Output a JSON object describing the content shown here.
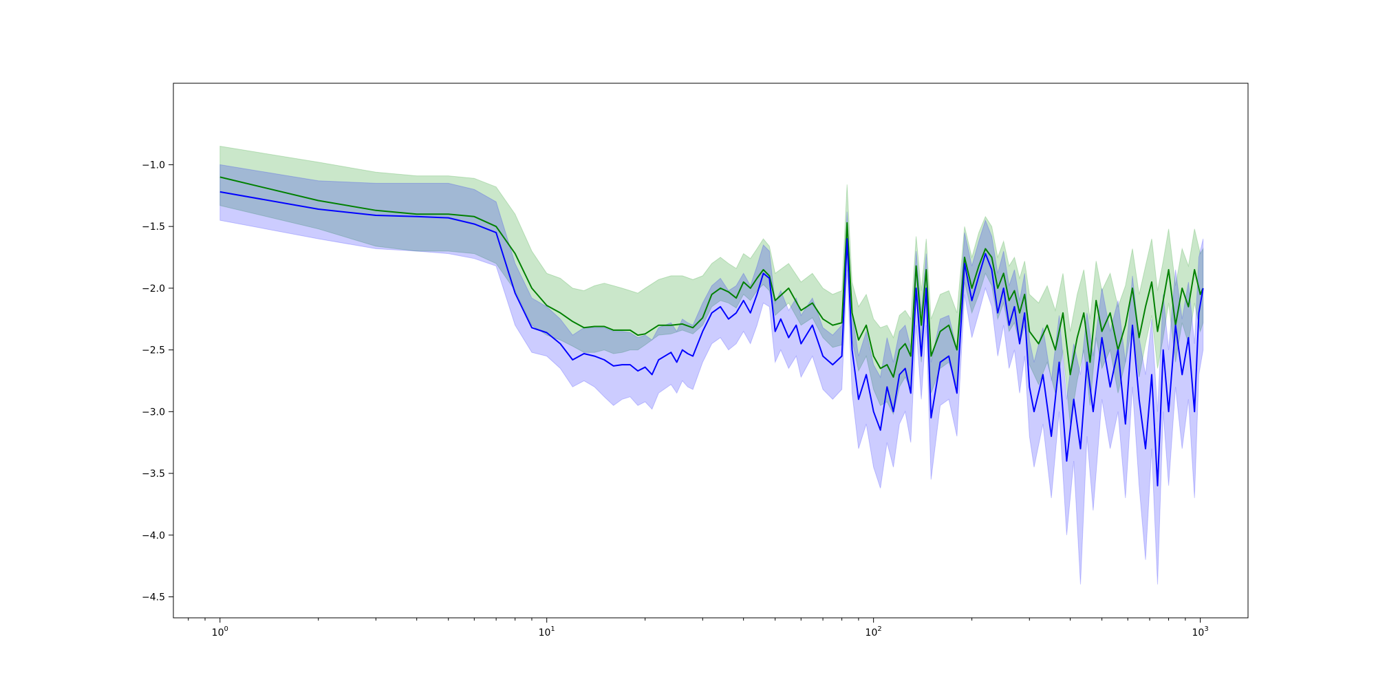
{
  "chart_data": {
    "type": "line",
    "title": "",
    "xlabel": "",
    "ylabel": "",
    "xscale": "log",
    "xlim": [
      0.72,
      1400
    ],
    "ylim": [
      -4.67,
      -0.34
    ],
    "grid": false,
    "legend": "none",
    "x_tick_labels": [
      {
        "base": "10",
        "exp": "0",
        "value": 1
      },
      {
        "base": "10",
        "exp": "1",
        "value": 10
      },
      {
        "base": "10",
        "exp": "2",
        "value": 100
      },
      {
        "base": "10",
        "exp": "3",
        "value": 1000
      }
    ],
    "y_ticks": [
      -1.0,
      -1.5,
      -2.0,
      -2.5,
      -3.0,
      -3.5,
      -4.0,
      -4.5
    ],
    "y_tick_labels": [
      "−1.0",
      "−1.5",
      "−2.0",
      "−2.5",
      "−3.0",
      "−3.5",
      "−4.0",
      "−4.5"
    ],
    "series": [
      {
        "color": "#008000",
        "band_color": "#2ca02c",
        "band_opacity": 0.25,
        "x": [
          1,
          2,
          3,
          4,
          5,
          6,
          7,
          8,
          9,
          10,
          11,
          12,
          13,
          14,
          15,
          16,
          17,
          18,
          19,
          20,
          22,
          24,
          26,
          28,
          30,
          32,
          34,
          36,
          38,
          40,
          42,
          44,
          46,
          48,
          50,
          55,
          60,
          65,
          70,
          75,
          80,
          83,
          86,
          90,
          95,
          100,
          105,
          110,
          115,
          120,
          125,
          130,
          135,
          140,
          145,
          150,
          160,
          170,
          180,
          190,
          200,
          210,
          220,
          230,
          240,
          250,
          260,
          270,
          280,
          290,
          300,
          320,
          340,
          360,
          380,
          400,
          420,
          440,
          460,
          480,
          500,
          530,
          560,
          590,
          620,
          650,
          680,
          710,
          740,
          770,
          800,
          840,
          880,
          920,
          960,
          1000,
          1020
        ],
        "y": [
          -1.1,
          -1.29,
          -1.37,
          -1.4,
          -1.4,
          -1.42,
          -1.5,
          -1.72,
          -2.0,
          -2.14,
          -2.2,
          -2.27,
          -2.32,
          -2.31,
          -2.31,
          -2.34,
          -2.34,
          -2.34,
          -2.38,
          -2.37,
          -2.3,
          -2.3,
          -2.29,
          -2.32,
          -2.24,
          -2.05,
          -2.0,
          -2.03,
          -2.08,
          -1.95,
          -2.0,
          -1.92,
          -1.85,
          -1.9,
          -2.1,
          -2.0,
          -2.18,
          -2.12,
          -2.25,
          -2.3,
          -2.28,
          -1.47,
          -2.2,
          -2.42,
          -2.3,
          -2.55,
          -2.65,
          -2.62,
          -2.72,
          -2.5,
          -2.45,
          -2.55,
          -1.82,
          -2.3,
          -1.85,
          -2.55,
          -2.35,
          -2.3,
          -2.5,
          -1.75,
          -2.0,
          -1.82,
          -1.68,
          -1.75,
          -2.0,
          -1.88,
          -2.1,
          -2.02,
          -2.2,
          -2.05,
          -2.35,
          -2.45,
          -2.3,
          -2.5,
          -2.2,
          -2.7,
          -2.4,
          -2.2,
          -2.6,
          -2.1,
          -2.35,
          -2.2,
          -2.5,
          -2.3,
          -2.0,
          -2.4,
          -2.15,
          -1.95,
          -2.35,
          -2.1,
          -1.85,
          -2.3,
          -2.0,
          -2.15,
          -1.85,
          -2.05,
          -2.0
        ],
        "y_low": [
          -1.33,
          -1.52,
          -1.66,
          -1.7,
          -1.7,
          -1.72,
          -1.8,
          -2.02,
          -2.3,
          -2.38,
          -2.42,
          -2.47,
          -2.52,
          -2.52,
          -2.5,
          -2.53,
          -2.52,
          -2.5,
          -2.5,
          -2.46,
          -2.38,
          -2.37,
          -2.34,
          -2.37,
          -2.3,
          -2.15,
          -2.1,
          -2.12,
          -2.16,
          -2.05,
          -2.1,
          -2.02,
          -1.97,
          -2.02,
          -2.22,
          -2.12,
          -2.3,
          -2.24,
          -2.4,
          -2.48,
          -2.46,
          -1.7,
          -2.42,
          -2.67,
          -2.55,
          -2.82,
          -2.95,
          -2.92,
          -3.02,
          -2.8,
          -2.72,
          -2.82,
          -2.05,
          -2.6,
          -2.08,
          -2.85,
          -2.65,
          -2.6,
          -2.8,
          -1.95,
          -2.2,
          -2.05,
          -1.88,
          -1.98,
          -2.25,
          -2.12,
          -2.35,
          -2.28,
          -2.45,
          -2.3,
          -2.62,
          -2.78,
          -2.6,
          -2.85,
          -2.5,
          -3.1,
          -2.75,
          -2.5,
          -2.95,
          -2.4,
          -2.65,
          -2.5,
          -2.85,
          -2.6,
          -2.3,
          -2.72,
          -2.45,
          -2.22,
          -2.65,
          -2.4,
          -2.12,
          -2.6,
          -2.28,
          -2.45,
          -2.12,
          -2.35,
          -2.28
        ],
        "y_high": [
          -0.85,
          -0.98,
          -1.06,
          -1.09,
          -1.09,
          -1.11,
          -1.18,
          -1.4,
          -1.7,
          -1.88,
          -1.92,
          -2.0,
          -2.02,
          -1.98,
          -1.96,
          -1.98,
          -2.0,
          -2.02,
          -2.04,
          -2.0,
          -1.93,
          -1.9,
          -1.9,
          -1.93,
          -1.9,
          -1.8,
          -1.75,
          -1.8,
          -1.84,
          -1.72,
          -1.76,
          -1.68,
          -1.6,
          -1.66,
          -1.88,
          -1.8,
          -1.95,
          -1.88,
          -2.0,
          -2.05,
          -2.02,
          -1.16,
          -1.95,
          -2.15,
          -2.05,
          -2.25,
          -2.32,
          -2.3,
          -2.4,
          -2.22,
          -2.18,
          -2.25,
          -1.58,
          -2.02,
          -1.6,
          -2.25,
          -2.05,
          -2.02,
          -2.2,
          -1.5,
          -1.75,
          -1.55,
          -1.42,
          -1.5,
          -1.75,
          -1.62,
          -1.82,
          -1.75,
          -1.92,
          -1.78,
          -2.05,
          -2.12,
          -1.98,
          -2.18,
          -1.88,
          -2.35,
          -2.05,
          -1.85,
          -2.25,
          -1.78,
          -2.02,
          -1.88,
          -2.15,
          -1.98,
          -1.68,
          -2.05,
          -1.82,
          -1.6,
          -2.02,
          -1.78,
          -1.52,
          -1.98,
          -1.68,
          -1.82,
          -1.52,
          -1.72,
          -1.68
        ]
      },
      {
        "color": "#0000ff",
        "band_color": "#0000ff",
        "band_opacity": 0.2,
        "x": [
          1,
          2,
          3,
          4,
          5,
          6,
          7,
          8,
          9,
          10,
          11,
          12,
          13,
          14,
          15,
          16,
          17,
          18,
          19,
          20,
          21,
          22,
          24,
          25,
          26,
          27,
          28,
          30,
          32,
          34,
          36,
          38,
          40,
          42,
          44,
          46,
          48,
          50,
          52,
          55,
          58,
          60,
          65,
          70,
          75,
          80,
          83,
          86,
          90,
          95,
          100,
          105,
          110,
          115,
          120,
          125,
          130,
          135,
          140,
          145,
          150,
          160,
          170,
          180,
          190,
          200,
          210,
          220,
          230,
          240,
          250,
          260,
          270,
          280,
          290,
          300,
          310,
          330,
          350,
          370,
          390,
          410,
          430,
          450,
          470,
          500,
          530,
          560,
          590,
          620,
          650,
          680,
          710,
          740,
          770,
          800,
          840,
          880,
          920,
          960,
          990,
          1020
        ],
        "y": [
          -1.22,
          -1.36,
          -1.41,
          -1.42,
          -1.43,
          -1.48,
          -1.55,
          -2.04,
          -2.32,
          -2.36,
          -2.45,
          -2.58,
          -2.53,
          -2.55,
          -2.58,
          -2.63,
          -2.62,
          -2.62,
          -2.67,
          -2.64,
          -2.7,
          -2.58,
          -2.52,
          -2.6,
          -2.5,
          -2.53,
          -2.55,
          -2.35,
          -2.2,
          -2.15,
          -2.25,
          -2.2,
          -2.1,
          -2.2,
          -2.05,
          -1.88,
          -1.92,
          -2.35,
          -2.25,
          -2.4,
          -2.3,
          -2.45,
          -2.3,
          -2.55,
          -2.62,
          -2.55,
          -1.6,
          -2.5,
          -2.9,
          -2.7,
          -3.0,
          -3.15,
          -2.8,
          -3.0,
          -2.7,
          -2.65,
          -2.85,
          -2.0,
          -2.55,
          -2.0,
          -3.05,
          -2.6,
          -2.55,
          -2.85,
          -1.8,
          -2.1,
          -1.9,
          -1.72,
          -1.85,
          -2.2,
          -2.0,
          -2.3,
          -2.15,
          -2.45,
          -2.2,
          -2.8,
          -3.0,
          -2.7,
          -3.2,
          -2.6,
          -3.4,
          -2.9,
          -3.3,
          -2.6,
          -3.0,
          -2.4,
          -2.8,
          -2.5,
          -3.1,
          -2.3,
          -2.9,
          -3.3,
          -2.7,
          -3.6,
          -2.5,
          -3.0,
          -2.3,
          -2.7,
          -2.4,
          -3.0,
          -2.2,
          -2.0
        ],
        "y_low": [
          -1.45,
          -1.6,
          -1.68,
          -1.7,
          -1.72,
          -1.76,
          -1.82,
          -2.3,
          -2.52,
          -2.55,
          -2.65,
          -2.8,
          -2.75,
          -2.8,
          -2.88,
          -2.95,
          -2.9,
          -2.88,
          -2.95,
          -2.92,
          -2.98,
          -2.85,
          -2.78,
          -2.85,
          -2.75,
          -2.8,
          -2.82,
          -2.6,
          -2.45,
          -2.4,
          -2.5,
          -2.45,
          -2.35,
          -2.45,
          -2.3,
          -2.12,
          -2.15,
          -2.6,
          -2.5,
          -2.65,
          -2.55,
          -2.72,
          -2.55,
          -2.82,
          -2.9,
          -2.82,
          -1.85,
          -2.85,
          -3.3,
          -3.1,
          -3.45,
          -3.62,
          -3.25,
          -3.45,
          -3.1,
          -3.0,
          -3.25,
          -2.3,
          -2.9,
          -2.3,
          -3.55,
          -2.95,
          -2.9,
          -3.2,
          -2.05,
          -2.4,
          -2.2,
          -2.0,
          -2.15,
          -2.55,
          -2.3,
          -2.65,
          -2.5,
          -2.85,
          -2.55,
          -3.2,
          -3.45,
          -3.1,
          -3.7,
          -3.0,
          -4.0,
          -3.4,
          -4.4,
          -3.2,
          -3.8,
          -2.9,
          -3.3,
          -3.0,
          -3.7,
          -2.8,
          -3.6,
          -4.2,
          -3.3,
          -4.4,
          -3.0,
          -3.6,
          -2.8,
          -3.3,
          -2.9,
          -3.7,
          -2.7,
          -2.5
        ],
        "y_high": [
          -1.0,
          -1.13,
          -1.15,
          -1.15,
          -1.15,
          -1.2,
          -1.3,
          -1.8,
          -2.08,
          -2.15,
          -2.25,
          -2.38,
          -2.32,
          -2.32,
          -2.32,
          -2.35,
          -2.35,
          -2.36,
          -2.4,
          -2.38,
          -2.42,
          -2.32,
          -2.28,
          -2.35,
          -2.25,
          -2.28,
          -2.3,
          -2.12,
          -1.98,
          -1.92,
          -2.02,
          -1.98,
          -1.88,
          -1.98,
          -1.82,
          -1.65,
          -1.7,
          -2.12,
          -2.02,
          -2.18,
          -2.08,
          -2.22,
          -2.08,
          -2.32,
          -2.38,
          -2.3,
          -1.38,
          -2.2,
          -2.55,
          -2.35,
          -2.62,
          -2.72,
          -2.4,
          -2.6,
          -2.35,
          -2.3,
          -2.48,
          -1.7,
          -2.2,
          -1.72,
          -2.6,
          -2.25,
          -2.22,
          -2.5,
          -1.55,
          -1.82,
          -1.62,
          -1.45,
          -1.58,
          -1.88,
          -1.7,
          -1.98,
          -1.85,
          -2.1,
          -1.88,
          -2.42,
          -2.6,
          -2.32,
          -2.75,
          -2.22,
          -2.9,
          -2.45,
          -2.7,
          -2.2,
          -2.55,
          -2.0,
          -2.35,
          -2.1,
          -2.6,
          -1.9,
          -2.4,
          -2.7,
          -2.25,
          -3.0,
          -2.05,
          -2.5,
          -1.85,
          -2.25,
          -1.95,
          -2.45,
          -1.75,
          -1.6
        ]
      }
    ]
  }
}
